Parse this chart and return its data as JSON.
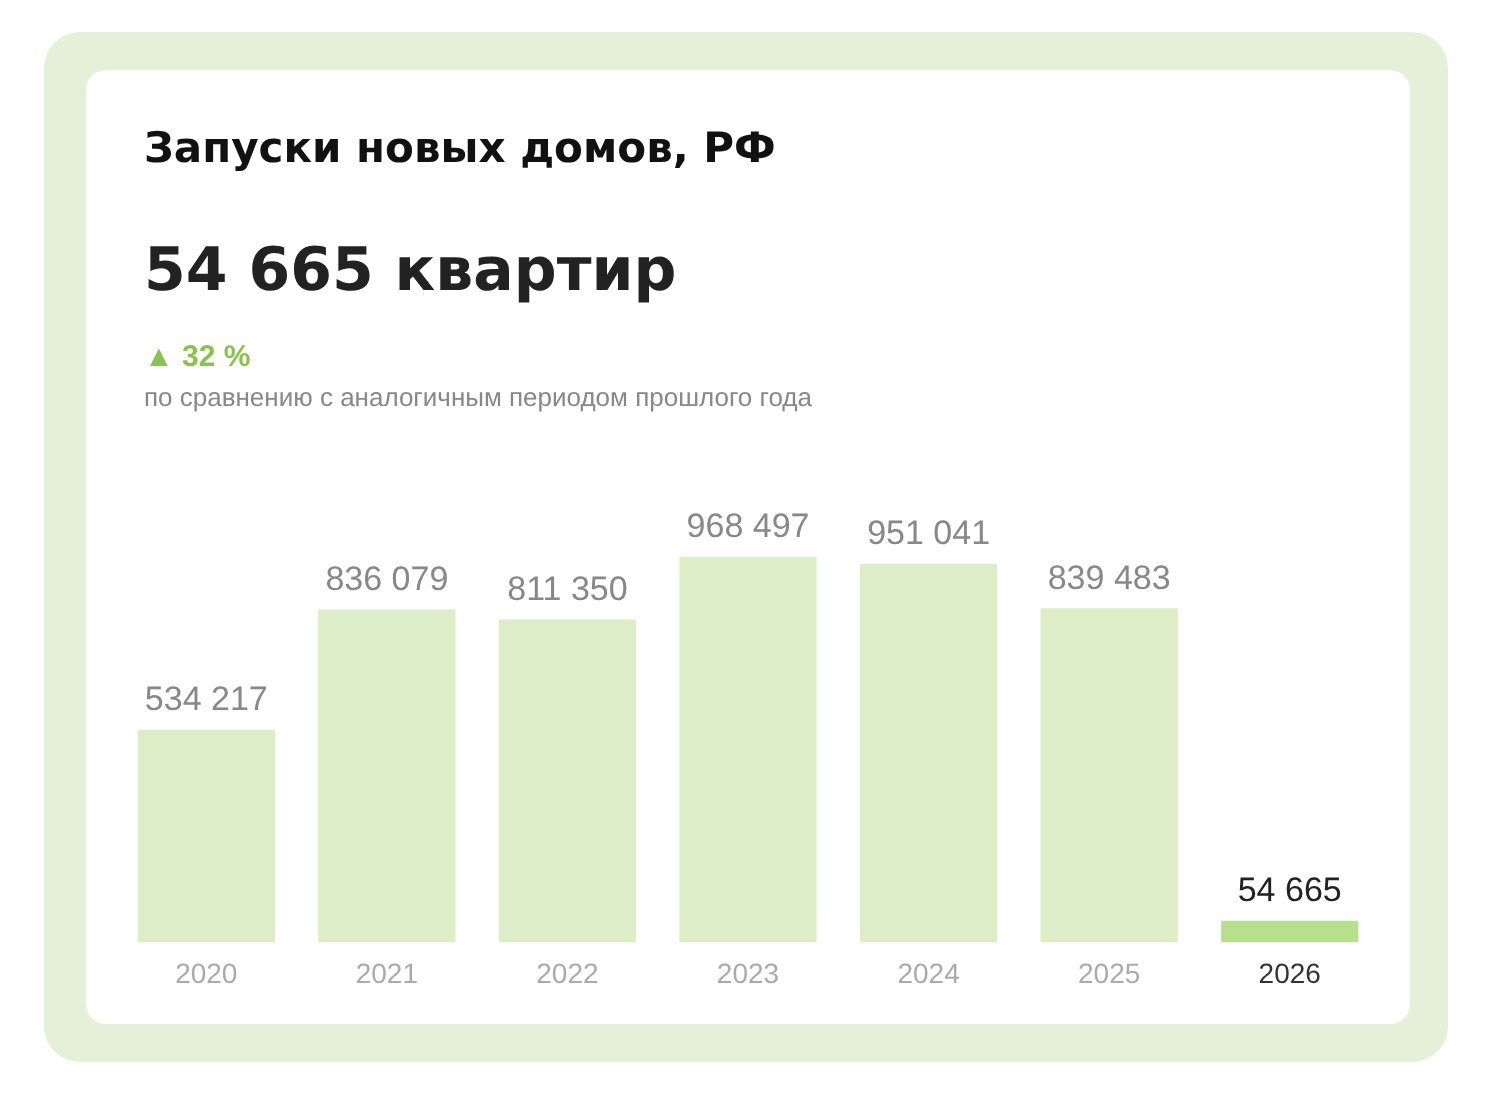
{
  "chart_data": {
    "type": "bar",
    "title": "Запуски новых домов, РФ",
    "subtitle": "54 665 квартир",
    "annotations": [
      "▲ 32 %",
      "по сравнению с аналогичным периодом прошлого года"
    ],
    "categories": [
      "2020",
      "2021",
      "2022",
      "2023",
      "2024",
      "2025",
      "2026"
    ],
    "values": [
      534217,
      836079,
      811350,
      968497,
      951041,
      839483,
      54665
    ],
    "colors": [
      "#dcedc8",
      "#dcedc8",
      "#dcedc8",
      "#dcedc8",
      "#dcedc8",
      "#dcedc8",
      "#b8df8e"
    ],
    "data_labels": true,
    "grid": false,
    "legend": false
  }
}
